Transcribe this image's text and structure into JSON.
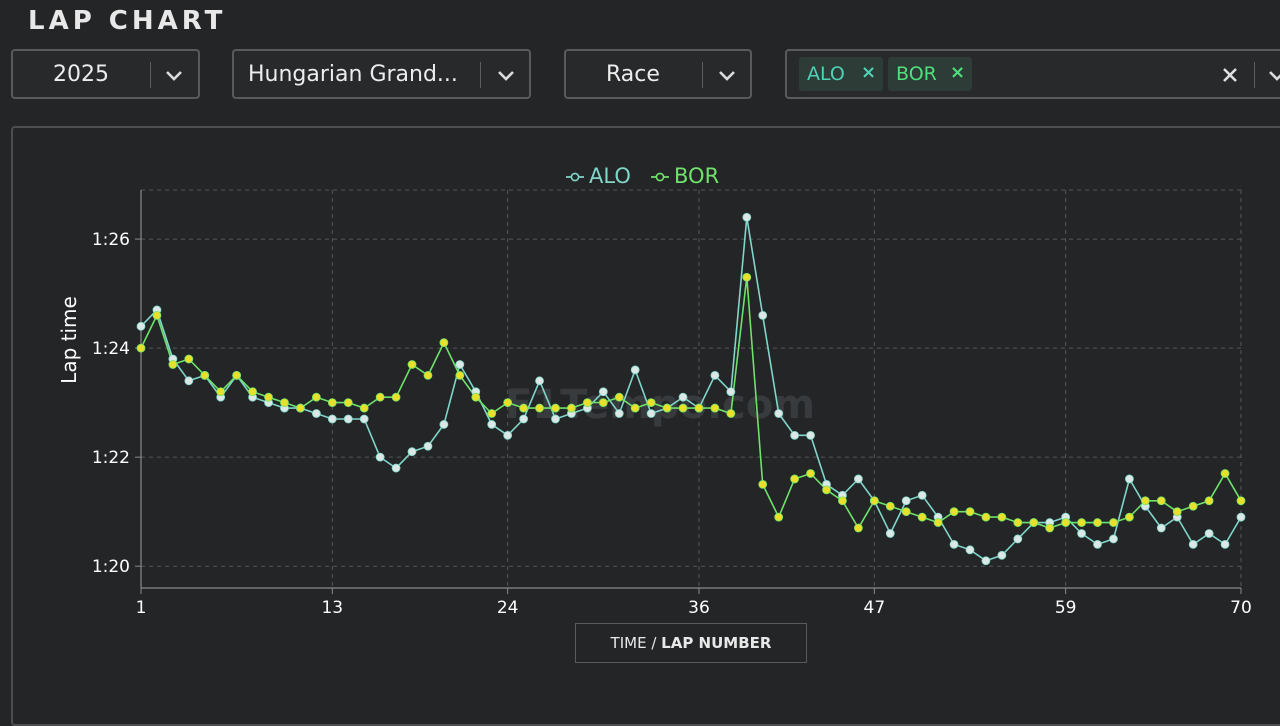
{
  "page": {
    "title": "LAP CHART"
  },
  "filters": {
    "year": "2025",
    "event": "Hungarian Grand...",
    "session": "Race",
    "drivers": [
      {
        "label": "ALO",
        "color": "#4fd1b6"
      },
      {
        "label": "BOR",
        "color": "#4ee07a"
      }
    ],
    "clear_icon": "close-icon",
    "dropdown_icon": "chevron-down-icon"
  },
  "watermark": "F1Tempo.com",
  "axis_toggle": {
    "left": "TIME /",
    "right": "LAP NUMBER"
  },
  "chart_data": {
    "type": "line",
    "ylabel": "Lap time",
    "xlabel": "",
    "legend_position": "top-center",
    "grid": true,
    "x_ticks": [
      1,
      13,
      24,
      36,
      47,
      59,
      70
    ],
    "y_ticks": [
      "1:20",
      "1:22",
      "1:24",
      "1:26"
    ],
    "xlim": [
      1,
      70
    ],
    "ylim_seconds": [
      79.6,
      86.9
    ],
    "series": [
      {
        "name": "ALO",
        "color": "#7fd6c9",
        "marker_fill": "#dbe8e6",
        "x": [
          1,
          2,
          3,
          4,
          5,
          6,
          7,
          8,
          9,
          10,
          11,
          12,
          13,
          14,
          15,
          16,
          17,
          18,
          19,
          20,
          21,
          22,
          23,
          24,
          25,
          26,
          27,
          28,
          29,
          30,
          31,
          32,
          33,
          34,
          35,
          36,
          37,
          38,
          39,
          40,
          41,
          42,
          43,
          44,
          45,
          46,
          47,
          48,
          49,
          50,
          51,
          52,
          53,
          54,
          55,
          56,
          57,
          58,
          59,
          60,
          61,
          62,
          63,
          64,
          65,
          66,
          67,
          68,
          69,
          70
        ],
        "y": [
          84.4,
          84.7,
          83.8,
          83.4,
          83.5,
          83.1,
          83.5,
          83.1,
          83.0,
          82.9,
          82.9,
          82.8,
          82.7,
          82.7,
          82.7,
          82.0,
          81.8,
          82.1,
          82.2,
          82.6,
          83.7,
          83.2,
          82.6,
          82.4,
          82.7,
          83.4,
          82.7,
          82.8,
          82.9,
          83.2,
          82.8,
          83.6,
          82.8,
          82.9,
          83.1,
          82.9,
          83.5,
          83.2,
          86.4,
          84.6,
          82.8,
          82.4,
          82.4,
          81.5,
          81.3,
          81.6,
          81.2,
          80.6,
          81.2,
          81.3,
          80.9,
          80.4,
          80.3,
          80.1,
          80.2,
          80.5,
          80.8,
          80.8,
          80.9,
          80.6,
          80.4,
          80.5,
          81.6,
          81.1,
          80.7,
          80.9,
          80.4,
          80.6,
          80.4,
          80.9
        ]
      },
      {
        "name": "BOR",
        "color": "#6fe26a",
        "marker_fill": "#e9e02c",
        "x": [
          1,
          2,
          3,
          4,
          5,
          6,
          7,
          8,
          9,
          10,
          11,
          12,
          13,
          14,
          15,
          16,
          17,
          18,
          19,
          20,
          21,
          22,
          23,
          24,
          25,
          26,
          27,
          28,
          29,
          30,
          31,
          32,
          33,
          34,
          35,
          36,
          37,
          38,
          39,
          40,
          41,
          42,
          43,
          44,
          45,
          46,
          47,
          48,
          49,
          50,
          51,
          52,
          53,
          54,
          55,
          56,
          57,
          58,
          59,
          60,
          61,
          62,
          63,
          64,
          65,
          66,
          67,
          68,
          69,
          70
        ],
        "y": [
          84.0,
          84.6,
          83.7,
          83.8,
          83.5,
          83.2,
          83.5,
          83.2,
          83.1,
          83.0,
          82.9,
          83.1,
          83.0,
          83.0,
          82.9,
          83.1,
          83.1,
          83.7,
          83.5,
          84.1,
          83.5,
          83.1,
          82.8,
          83.0,
          82.9,
          82.9,
          82.9,
          82.9,
          83.0,
          83.0,
          83.1,
          82.9,
          83.0,
          82.9,
          82.9,
          82.9,
          82.9,
          82.8,
          85.3,
          81.5,
          80.9,
          81.6,
          81.7,
          81.4,
          81.2,
          80.7,
          81.2,
          81.1,
          81.0,
          80.9,
          80.8,
          81.0,
          81.0,
          80.9,
          80.9,
          80.8,
          80.8,
          80.7,
          80.8,
          80.8,
          80.8,
          80.8,
          80.9,
          81.2,
          81.2,
          81.0,
          81.1,
          81.2,
          81.7,
          81.2
        ]
      }
    ]
  }
}
